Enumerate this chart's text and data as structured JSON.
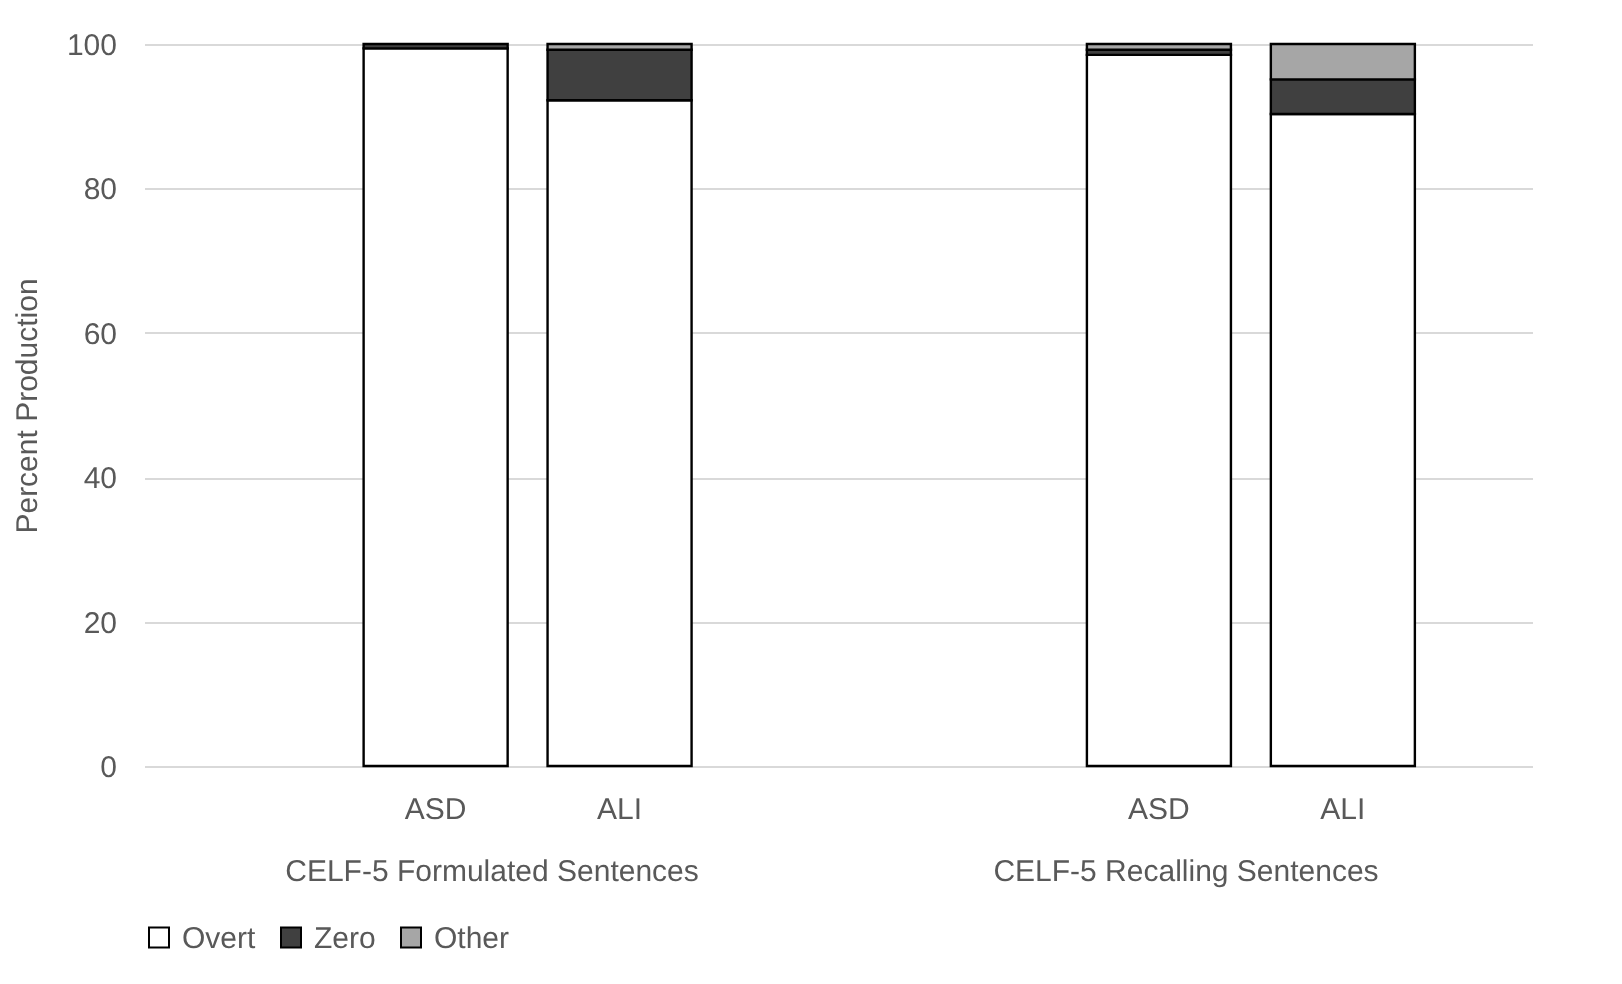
{
  "chart_data": [
    {
      "type": "bar",
      "stacked": true,
      "ylabel": "Percent Production",
      "xlabel": "CELF-5 Formulated Sentences",
      "categories": [
        "ASD",
        "ALI"
      ],
      "series": [
        {
          "name": "Overt",
          "color": "#ffffff",
          "values": [
            99.4,
            92.2
          ]
        },
        {
          "name": "Zero",
          "color": "#404040",
          "values": [
            0.6,
            7.0
          ]
        },
        {
          "name": "Other",
          "color": "#a6a6a6",
          "values": [
            null,
            0.8
          ]
        }
      ],
      "ylim": [
        0,
        100
      ],
      "yticks": [
        0,
        20,
        40,
        60,
        80,
        100
      ],
      "grid": "y",
      "legend": "bottom"
    },
    {
      "type": "bar",
      "stacked": true,
      "xlabel": "CELF-5 Recalling Sentences",
      "categories": [
        "ASD",
        "ALI"
      ],
      "series": [
        {
          "name": "Overt",
          "color": "#ffffff",
          "values": [
            98.5,
            90.3
          ]
        },
        {
          "name": "Zero",
          "color": "#404040",
          "values": [
            0.7,
            4.8
          ]
        },
        {
          "name": "Other",
          "color": "#a6a6a6",
          "values": [
            0.8,
            4.9
          ]
        }
      ],
      "ylim": [
        0,
        100
      ],
      "yticks": [
        0,
        20,
        40,
        60,
        80,
        100
      ],
      "grid": "y",
      "legend": "bottom",
      "tick_labels": "x"
    }
  ]
}
